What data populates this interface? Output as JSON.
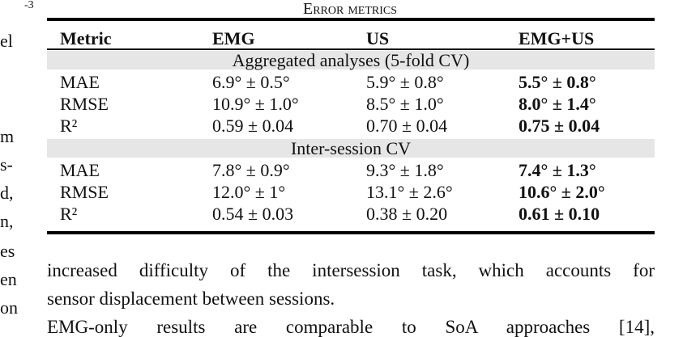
{
  "left_column": [
    "-3",
    "el",
    "m",
    "s-",
    "d,",
    "n,",
    "es",
    "en",
    "on"
  ],
  "table": {
    "title": "Error metrics",
    "header": [
      "Metric",
      "EMG",
      "US",
      "EMG+US"
    ],
    "sections": [
      {
        "label": "Aggregated analyses (5-fold CV)",
        "rows": [
          [
            "MAE",
            "6.9° ± 0.5°",
            "5.9° ± 0.8°",
            "5.5° ± 0.8°"
          ],
          [
            "RMSE",
            "10.9° ± 1.0°",
            "8.5° ± 1.0°",
            "8.0° ± 1.4°"
          ],
          [
            "R²",
            "0.59 ± 0.04",
            "0.70 ± 0.04",
            "0.75 ± 0.04"
          ]
        ]
      },
      {
        "label": "Inter-session CV",
        "rows": [
          [
            "MAE",
            "7.8° ± 0.9°",
            "9.3° ± 1.8°",
            "7.4° ± 1.3°"
          ],
          [
            "RMSE",
            "12.0° ± 1°",
            "13.1° ± 2.6°",
            "10.6° ± 2.0°"
          ],
          [
            "R²",
            "0.54 ± 0.03",
            "0.38 ± 0.20",
            "0.61 ± 0.10"
          ]
        ]
      }
    ]
  },
  "paragraph": [
    "increased difficulty of the intersession task, which accounts for",
    "sensor displacement between sessions.",
    "EMG-only results are comparable to SoA approaches [14],"
  ]
}
